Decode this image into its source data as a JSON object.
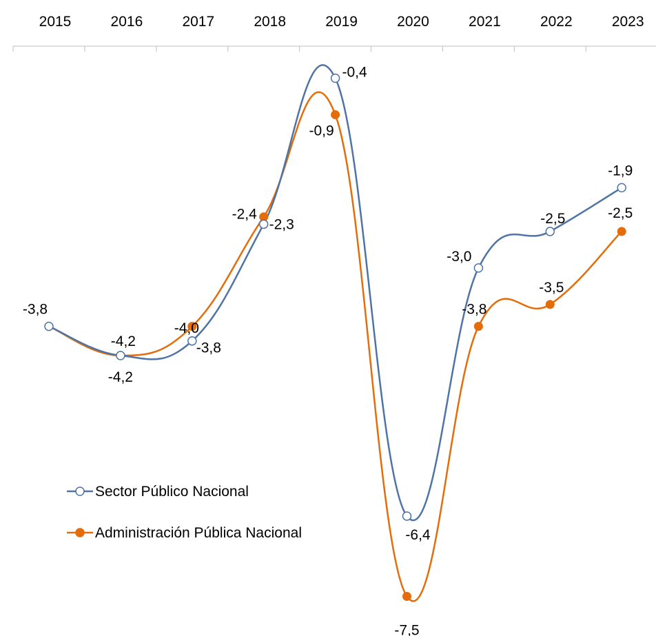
{
  "chart_data": {
    "type": "line",
    "x": [
      "2015",
      "2016",
      "2017",
      "2018",
      "2019",
      "2020",
      "2021",
      "2022",
      "2023"
    ],
    "xaxis_position": "top",
    "grid": false,
    "smooth": true,
    "legend_position": "bottom-left",
    "series": [
      {
        "name": "Sector Público Nacional",
        "values": [
          -3.8,
          -4.2,
          -4.0,
          -2.4,
          -0.4,
          -6.4,
          -3.0,
          -2.5,
          -1.9
        ],
        "labels": [
          "",
          "-4,2",
          "-4,0",
          "-2,4",
          "-0,4",
          "-6,4",
          "-3,0",
          "-2,5",
          "-1,9"
        ],
        "color": "#4e73a4",
        "marker": "hollow-circle"
      },
      {
        "name": "Administración Pública Nacional",
        "values": [
          -3.8,
          -4.2,
          -3.8,
          -2.3,
          -0.9,
          -7.5,
          -3.8,
          -3.5,
          -2.5
        ],
        "labels": [
          "-3,8",
          "-4,2",
          "-3,8",
          "-2,3",
          "-0,9",
          "-7,5",
          "-3,8",
          "-3,5",
          "-2,5"
        ],
        "color": "#e46c0a",
        "marker": "filled-circle"
      }
    ]
  }
}
